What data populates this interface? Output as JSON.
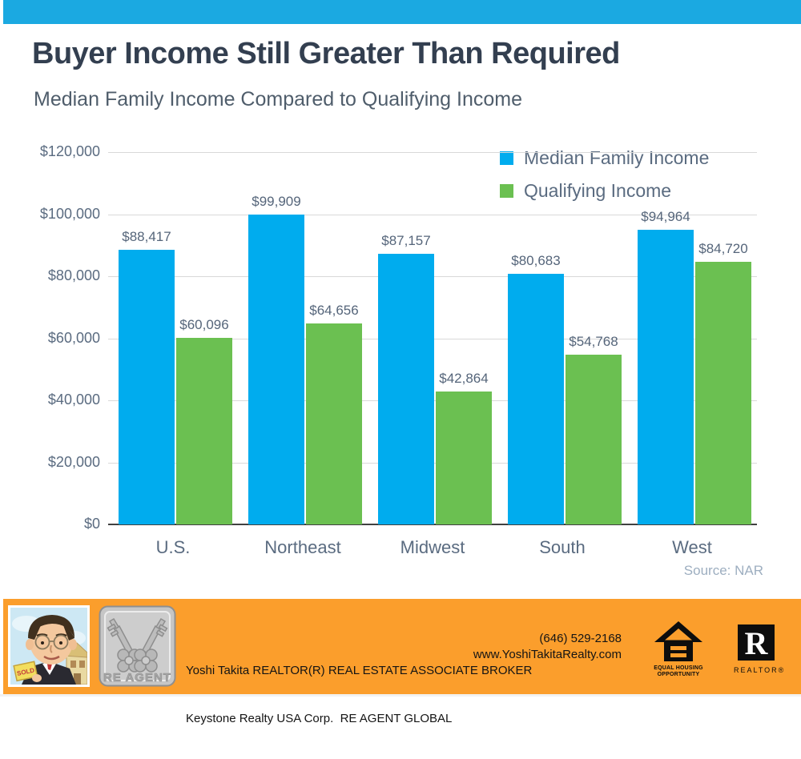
{
  "colors": {
    "topbar_blue": "#1BA9E1",
    "bar_blue": "#00ACEE",
    "bar_green": "#6BC051",
    "footer_orange": "#FB9E2C"
  },
  "header": {
    "title": "Buyer Income Still Greater Than Required",
    "subtitle": "Median Family Income Compared to Qualifying Income"
  },
  "chart_data": {
    "type": "bar",
    "title": "Buyer Income Still Greater Than Required",
    "subtitle": "Median Family Income Compared to Qualifying Income",
    "categories": [
      "U.S.",
      "Northeast",
      "Midwest",
      "South",
      "West"
    ],
    "series": [
      {
        "name": "Median Family Income",
        "color": "#00ACEE",
        "values": [
          88417,
          99909,
          87157,
          80683,
          94964
        ]
      },
      {
        "name": "Qualifying Income",
        "color": "#6BC051",
        "values": [
          60096,
          64656,
          42864,
          54768,
          84720
        ]
      }
    ],
    "value_labels": [
      [
        "$88,417",
        "$99,909",
        "$87,157",
        "$80,683",
        "$94,964"
      ],
      [
        "$60,096",
        "$64,656",
        "$42,864",
        "$54,768",
        "$84,720"
      ]
    ],
    "xlabel": "",
    "ylabel": "",
    "ylim": [
      0,
      120000
    ],
    "ytick_step": 20000,
    "ytick_labels": [
      "$0",
      "$20,000",
      "$40,000",
      "$60,000",
      "$80,000",
      "$100,000",
      "$120,000"
    ],
    "grid": true,
    "legend_position": "top-right",
    "source": "Source: NAR"
  },
  "footer": {
    "agent_line1": "Yoshi Takita REALTOR(R) REAL ESTATE ASSOCIATE BROKER",
    "agent_line2": "Keystone Realty USA Corp.  RE AGENT GLOBAL",
    "phone": "(646) 529-2168",
    "website": "www.YoshiTakitaRealty.com",
    "reagent_logo_text": "RE AGENT",
    "sold_sign_text": "SOLD",
    "equal_housing": {
      "line1": "EQUAL HOUSING",
      "line2": "OPPORTUNITY"
    },
    "realtor_label": "REALTOR®"
  }
}
